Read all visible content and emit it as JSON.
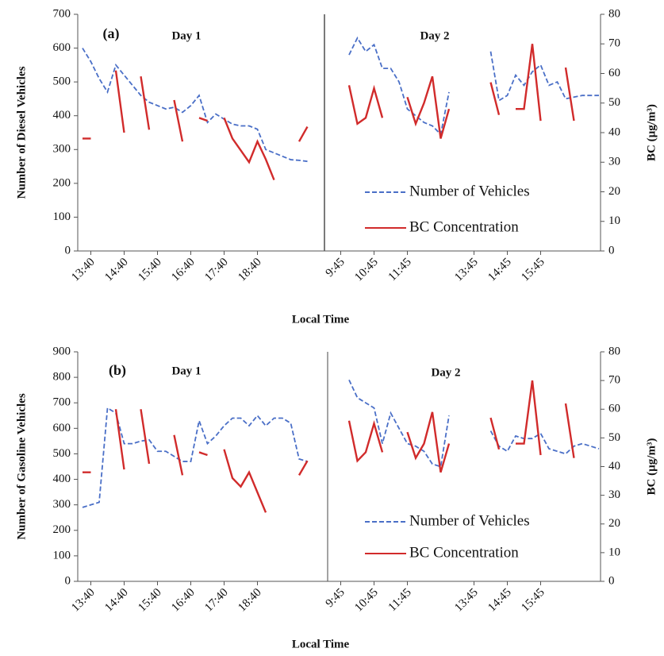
{
  "chart_data": [
    {
      "type": "line",
      "panel_label": "(a)",
      "annotations": [
        "Day 1",
        "Day 2"
      ],
      "y_label": "Number of Diesel Vehicles",
      "y2_label": "BC (µg/m³)",
      "x_label": "Local Time",
      "categories": [
        null,
        "13:40",
        null,
        null,
        null,
        "14:40",
        null,
        null,
        null,
        "15:40",
        null,
        null,
        null,
        "16:40",
        null,
        null,
        null,
        "17:40",
        null,
        null,
        null,
        "18:40",
        null,
        null,
        null,
        null,
        null,
        null,
        null,
        null,
        null,
        "9:45",
        null,
        null,
        null,
        "10:45",
        null,
        null,
        null,
        "11:45",
        null,
        null,
        null,
        null,
        null,
        null,
        null,
        "13:45",
        null,
        null,
        null,
        "14:45",
        null,
        null,
        null,
        "15:45",
        null,
        null,
        null,
        null,
        null,
        null,
        null
      ],
      "series": [
        {
          "name": "Number of Vehicles",
          "color": "#4a6fc7",
          "line_style": "dashed",
          "values": [
            600,
            560,
            510,
            470,
            550,
            520,
            490,
            460,
            440,
            430,
            420,
            425,
            410,
            430,
            460,
            380,
            405,
            390,
            375,
            370,
            370,
            360,
            300,
            290,
            280,
            270,
            268,
            265,
            null,
            null,
            null,
            null,
            580,
            630,
            590,
            610,
            540,
            540,
            500,
            420,
            400,
            380,
            370,
            345,
            470,
            null,
            null,
            null,
            null,
            590,
            445,
            460,
            520,
            490,
            530,
            550,
            490,
            500,
            450,
            455,
            460,
            460,
            460
          ]
        },
        {
          "name": "BC Concentration",
          "color": "#d12b2b",
          "line_style": "solid",
          "axis": "y2",
          "values": [
            38,
            38,
            null,
            null,
            61,
            40,
            null,
            59,
            41,
            null,
            null,
            51,
            37,
            null,
            45,
            44,
            null,
            45,
            38,
            34,
            30,
            37,
            31,
            24,
            null,
            null,
            37,
            42,
            null,
            null,
            null,
            null,
            56,
            43,
            45,
            55,
            45,
            null,
            null,
            52,
            43,
            50,
            59,
            38,
            48,
            null,
            null,
            null,
            null,
            57,
            46,
            null,
            48,
            48,
            70,
            44,
            null,
            null,
            62,
            44,
            null,
            null,
            null
          ]
        }
      ],
      "ylim": [
        0,
        700
      ],
      "yticks": [
        0,
        100,
        200,
        300,
        400,
        500,
        600,
        700
      ],
      "y2lim": [
        0,
        80
      ],
      "y2ticks": [
        0,
        10,
        20,
        30,
        40,
        50,
        60,
        70,
        80
      ],
      "legend": "lower right"
    },
    {
      "type": "line",
      "panel_label": "(b)",
      "annotations": [
        "Day 1",
        "Day 2"
      ],
      "y_label": "Number of Gasoline Vehicles",
      "y2_label": "BC (µg/m³)",
      "x_label": "Local Time",
      "categories": [
        null,
        "13:40",
        null,
        null,
        null,
        "14:40",
        null,
        null,
        null,
        "15:40",
        null,
        null,
        null,
        "16:40",
        null,
        null,
        null,
        "17:40",
        null,
        null,
        null,
        "18:40",
        null,
        null,
        null,
        null,
        null,
        null,
        null,
        null,
        null,
        "9:45",
        null,
        null,
        null,
        "10:45",
        null,
        null,
        null,
        "11:45",
        null,
        null,
        null,
        null,
        null,
        null,
        null,
        "13:45",
        null,
        null,
        null,
        "14:45",
        null,
        null,
        null,
        "15:45",
        null,
        null,
        null,
        null,
        null,
        null,
        null
      ],
      "series": [
        {
          "name": "Number of Vehicles",
          "color": "#4a6fc7",
          "line_style": "dashed",
          "values": [
            290,
            300,
            310,
            680,
            660,
            540,
            540,
            550,
            555,
            510,
            510,
            490,
            470,
            470,
            630,
            540,
            570,
            610,
            640,
            640,
            610,
            650,
            610,
            640,
            640,
            620,
            480,
            470,
            null,
            null,
            null,
            null,
            790,
            720,
            700,
            680,
            540,
            660,
            600,
            540,
            530,
            510,
            460,
            450,
            650,
            null,
            null,
            null,
            null,
            590,
            530,
            510,
            570,
            560,
            560,
            580,
            520,
            510,
            500,
            530,
            540,
            530,
            520
          ]
        },
        {
          "name": "BC Concentration",
          "color": "#d12b2b",
          "line_style": "solid",
          "axis": "y2",
          "values": [
            38,
            38,
            null,
            null,
            60,
            39,
            null,
            60,
            41,
            null,
            null,
            51,
            37,
            null,
            45,
            44,
            null,
            46,
            36,
            33,
            38,
            31,
            24,
            null,
            null,
            null,
            37,
            42,
            null,
            null,
            null,
            null,
            56,
            42,
            45,
            55,
            45,
            null,
            null,
            52,
            43,
            48,
            59,
            38,
            48,
            null,
            null,
            null,
            null,
            57,
            46,
            null,
            48,
            48,
            70,
            44,
            null,
            null,
            62,
            43,
            null,
            null,
            null
          ]
        }
      ],
      "ylim": [
        0,
        900
      ],
      "yticks": [
        0,
        100,
        200,
        300,
        400,
        500,
        600,
        700,
        800,
        900
      ],
      "y2lim": [
        0,
        80
      ],
      "y2ticks": [
        0,
        10,
        20,
        30,
        40,
        50,
        60,
        70,
        80
      ],
      "legend": "lower right"
    }
  ]
}
